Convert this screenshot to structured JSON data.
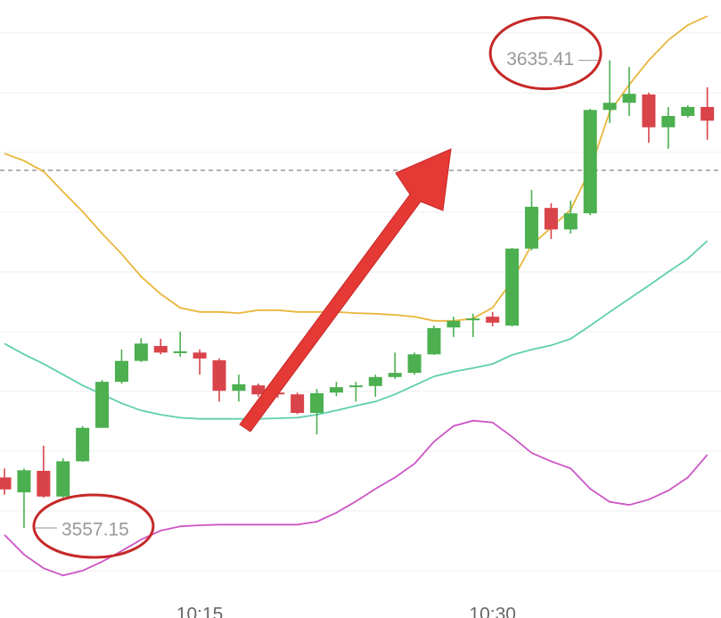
{
  "chart_data": {
    "type": "candlestick",
    "x": [
      605,
      606,
      607,
      608,
      609,
      610,
      611,
      612,
      613,
      614,
      615,
      616,
      617,
      618,
      619,
      620,
      621,
      622,
      623,
      624,
      625,
      626,
      627,
      628,
      629,
      630,
      631,
      632,
      633,
      634,
      635,
      636,
      637,
      638,
      639,
      640,
      641
    ],
    "open": [
      3565.6,
      3563.1,
      3566.7,
      3562.4,
      3568.3,
      3573.9,
      3581.6,
      3585.1,
      3587.6,
      3586.4,
      3586.5,
      3585.2,
      3580.1,
      3581.0,
      3579.8,
      3579.5,
      3576.4,
      3579.8,
      3580.7,
      3580.9,
      3582.4,
      3583.1,
      3586.2,
      3590.7,
      3591.9,
      3592.5,
      3591.0,
      3603.9,
      3610.7,
      3607.1,
      3609.8,
      3627.1,
      3628.3,
      3629.7,
      3624.2,
      3626.1,
      3627.6
    ],
    "high": [
      3567.1,
      3567.1,
      3570.9,
      3568.8,
      3574.2,
      3581.9,
      3587.0,
      3588.9,
      3588.8,
      3590.0,
      3587.0,
      3585.5,
      3582.8,
      3581.3,
      3580.7,
      3579.8,
      3580.4,
      3581.6,
      3581.6,
      3582.8,
      3586.5,
      3586.5,
      3591.0,
      3592.5,
      3593.0,
      3593.3,
      3604.0,
      3613.7,
      3611.5,
      3611.9,
      3627.3,
      3635.41,
      3634.3,
      3630.0,
      3627.6,
      3627.9,
      3630.9
    ],
    "low": [
      3562.7,
      3557.15,
      3562.2,
      3562.2,
      3568.2,
      3573.9,
      3581.3,
      3584.9,
      3586.2,
      3585.8,
      3582.8,
      3578.3,
      3578.3,
      3579.1,
      3578.9,
      3576.2,
      3572.8,
      3579.2,
      3578.3,
      3579.1,
      3582.1,
      3582.8,
      3586.1,
      3589.1,
      3589.1,
      3590.9,
      3590.9,
      3603.6,
      3605.5,
      3606.4,
      3609.5,
      3624.9,
      3626.1,
      3621.6,
      3620.6,
      3625.8,
      3622.1
    ],
    "close": [
      3563.6,
      3566.8,
      3562.4,
      3568.3,
      3573.9,
      3581.6,
      3585.1,
      3588.0,
      3586.5,
      3586.7,
      3585.5,
      3580.1,
      3581.2,
      3579.5,
      3579.5,
      3576.4,
      3579.7,
      3580.7,
      3581.0,
      3582.4,
      3583.1,
      3586.2,
      3590.6,
      3591.8,
      3592.2,
      3591.5,
      3603.9,
      3610.9,
      3607.1,
      3609.8,
      3627.1,
      3628.3,
      3629.8,
      3624.2,
      3626.1,
      3627.6,
      3625.3
    ],
    "up_color": "#4caf50",
    "down_color": "#d9434a",
    "lines": [
      {
        "color": "#e9b53b",
        "values": [
          3619.8,
          3618.6,
          3616.8,
          3613.4,
          3610.1,
          3606.4,
          3603.0,
          3599.2,
          3596.3,
          3594.0,
          3593.3,
          3593.3,
          3593.1,
          3593.6,
          3593.6,
          3593.3,
          3593.3,
          3593.3,
          3593.1,
          3593.0,
          3592.8,
          3592.5,
          3591.8,
          3591.8,
          3592.2,
          3594.0,
          3598.5,
          3604.5,
          3607.4,
          3610.4,
          3617.1,
          3626.8,
          3631.3,
          3635.4,
          3638.8,
          3641.3,
          3642.8
        ]
      },
      {
        "color": "#5fcfae",
        "values": [
          3588.0,
          3586.2,
          3584.6,
          3582.8,
          3581.0,
          3579.5,
          3578.0,
          3576.8,
          3576.1,
          3575.6,
          3575.4,
          3575.4,
          3575.4,
          3575.4,
          3575.5,
          3575.6,
          3576.1,
          3576.8,
          3577.6,
          3578.3,
          3579.5,
          3581.0,
          3582.5,
          3583.3,
          3583.9,
          3584.6,
          3586.1,
          3587.0,
          3587.7,
          3588.8,
          3591.0,
          3593.3,
          3595.5,
          3597.7,
          3600.0,
          3602.2,
          3605.2
        ]
      },
      {
        "color": "#cc55c4",
        "values": [
          3556.0,
          3552.7,
          3550.4,
          3549.2,
          3550.0,
          3551.5,
          3553.3,
          3555.2,
          3556.7,
          3557.4,
          3557.6,
          3557.7,
          3557.7,
          3557.7,
          3557.7,
          3557.7,
          3558.2,
          3559.7,
          3561.6,
          3563.7,
          3565.6,
          3567.9,
          3571.6,
          3574.2,
          3575.1,
          3574.8,
          3572.4,
          3569.7,
          3568.3,
          3567.1,
          3563.7,
          3561.5,
          3561.0,
          3561.9,
          3563.4,
          3565.6,
          3569.4
        ]
      }
    ],
    "reference_line": 3617.0,
    "xlim": [
      604.77,
      641.7
    ],
    "xticks": [
      {
        "value": 615,
        "label": "10:15"
      },
      {
        "value": 630,
        "label": "10:30"
      }
    ],
    "ylim": [
      3547,
      3645.5
    ],
    "yticks": [
      3550,
      3560,
      3570,
      3580,
      3590,
      3600,
      3610,
      3620,
      3630,
      3640
    ],
    "grid": true
  }
}
